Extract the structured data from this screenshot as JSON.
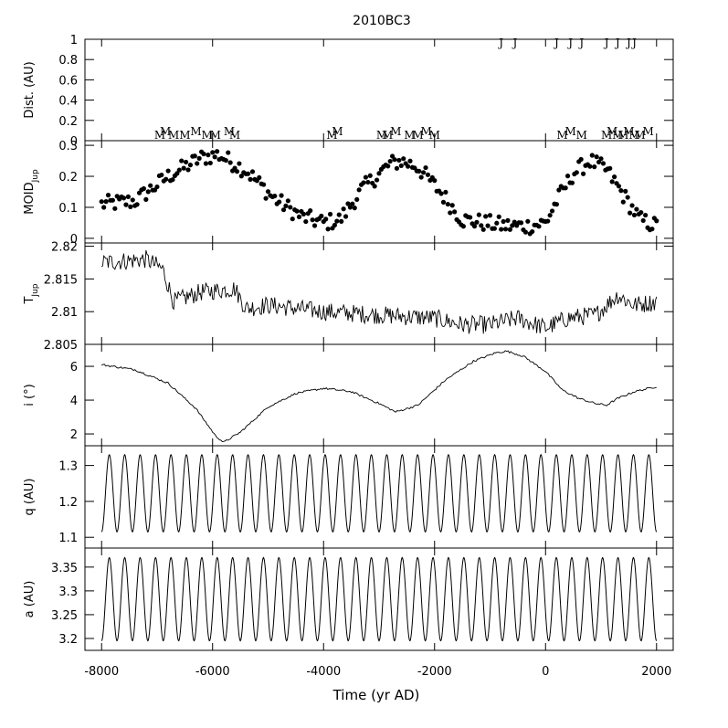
{
  "chart_data": {
    "type": "multi-panel time series",
    "title": "2010BC3",
    "xlabel": "Time (yr AD)",
    "xlim": [
      -8300,
      2300
    ],
    "x_ticks": [
      -8000,
      -6000,
      -4000,
      -2000,
      0,
      2000
    ],
    "x_tick_labels": [
      "-8000",
      "-6000",
      "-4000",
      "-2000",
      "0",
      "2000"
    ],
    "panels": [
      {
        "id": "dist",
        "ylabel": "Dist. (AU)",
        "ylim": [
          0,
          1
        ],
        "y_ticks": [
          0,
          0.2,
          0.4,
          0.6,
          0.8,
          1
        ],
        "y_tick_labels": [
          "0",
          "0.2",
          "0.4",
          "0.6",
          "0.8",
          "1"
        ],
        "encounters": {
          "jupiter_marker": "J",
          "mars_marker": "M",
          "jupiter_times": [
            -800,
            -550,
            200,
            450,
            650,
            1100,
            1300,
            1500,
            1600
          ],
          "mars_times": [
            -6950,
            -6850,
            -6700,
            -6500,
            -6300,
            -6100,
            -5950,
            -5700,
            -5600,
            -3850,
            -3750,
            -2950,
            -2850,
            -2700,
            -2450,
            -2300,
            -2150,
            -2000,
            300,
            450,
            650,
            1100,
            1200,
            1300,
            1400,
            1500,
            1600,
            1700,
            1850
          ]
        }
      },
      {
        "id": "moid",
        "ylabel": "MOID",
        "ylabel_sub": "Jup",
        "ylim": [
          -0.015,
          0.315
        ],
        "y_ticks": [
          0,
          0.1,
          0.2,
          0.3
        ],
        "y_tick_labels": [
          "0",
          "0.1",
          "0.2",
          "0.3"
        ],
        "style": "dots",
        "trend_x": [
          -8000,
          -7400,
          -6800,
          -6200,
          -5900,
          -5400,
          -4900,
          -4400,
          -4000,
          -3700,
          -3300,
          -2800,
          -2600,
          -2300,
          -1900,
          -1500,
          -1100,
          -700,
          -300,
          0,
          200,
          500,
          800,
          1100,
          1400,
          1700,
          2000
        ],
        "trend_y": [
          0.11,
          0.12,
          0.2,
          0.26,
          0.27,
          0.22,
          0.13,
          0.07,
          0.05,
          0.06,
          0.16,
          0.24,
          0.25,
          0.23,
          0.15,
          0.06,
          0.05,
          0.04,
          0.04,
          0.05,
          0.12,
          0.21,
          0.25,
          0.22,
          0.14,
          0.06,
          0.04
        ]
      },
      {
        "id": "tjup",
        "ylabel": "T",
        "ylabel_sub": "Jup",
        "ylim": [
          2.805,
          2.8205
        ],
        "y_ticks": [
          2.805,
          2.81,
          2.815,
          2.82
        ],
        "y_tick_labels": [
          "2.805",
          "2.81",
          "2.815",
          "2.82"
        ],
        "style": "line",
        "trend_x": [
          -8000,
          -7200,
          -6900,
          -6700,
          -6200,
          -5600,
          -5400,
          -5000,
          -4000,
          -3000,
          -2000,
          -1500,
          -1000,
          -500,
          0,
          400,
          900,
          1300,
          1600,
          2000
        ],
        "trend_y": [
          2.8175,
          2.818,
          2.8165,
          2.8115,
          2.813,
          2.8135,
          2.8105,
          2.811,
          2.81,
          2.8095,
          2.809,
          2.808,
          2.808,
          2.809,
          2.8075,
          2.809,
          2.8095,
          2.8125,
          2.811,
          2.8115
        ]
      },
      {
        "id": "incl",
        "ylabel": "i (°)",
        "ylim": [
          1.3,
          7.3
        ],
        "y_ticks": [
          2,
          4,
          6
        ],
        "y_tick_labels": [
          "2",
          "4",
          "6"
        ],
        "style": "line",
        "trend_x": [
          -8000,
          -7400,
          -6800,
          -6300,
          -5950,
          -5800,
          -5500,
          -5000,
          -4500,
          -4000,
          -3500,
          -3000,
          -2700,
          -2300,
          -1800,
          -1300,
          -900,
          -700,
          -400,
          0,
          300,
          600,
          900,
          1100,
          1300,
          1600,
          2000
        ],
        "trend_y": [
          6.1,
          5.8,
          5,
          3.5,
          1.9,
          1.5,
          2.1,
          3.6,
          4.4,
          4.7,
          4.5,
          3.8,
          3.3,
          3.7,
          5.2,
          6.3,
          6.8,
          6.9,
          6.6,
          5.7,
          4.6,
          4.1,
          3.8,
          3.7,
          4.1,
          4.5,
          4.8
        ]
      },
      {
        "id": "q",
        "ylabel": "q (AU)",
        "ylim": [
          1.07,
          1.355
        ],
        "y_ticks": [
          1.1,
          1.2,
          1.3
        ],
        "y_tick_labels": [
          "1.1",
          "1.2",
          "1.3"
        ],
        "style": "line",
        "oscillation": {
          "min": 1.115,
          "max": 1.33,
          "cycles": 36
        }
      },
      {
        "id": "a",
        "ylabel": "a (AU)",
        "ylim": [
          3.175,
          3.39
        ],
        "y_ticks": [
          3.2,
          3.25,
          3.3,
          3.35
        ],
        "y_tick_labels": [
          "3.2",
          "3.25",
          "3.3",
          "3.35"
        ],
        "style": "line",
        "oscillation": {
          "min": 3.195,
          "max": 3.37,
          "cycles": 36
        }
      }
    ]
  }
}
